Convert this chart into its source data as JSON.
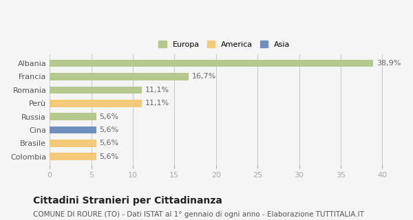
{
  "categories": [
    "Albania",
    "Francia",
    "Romania",
    "Perù",
    "Russia",
    "Cina",
    "Brasile",
    "Colombia"
  ],
  "values": [
    38.9,
    16.7,
    11.1,
    11.1,
    5.6,
    5.6,
    5.6,
    5.6
  ],
  "labels": [
    "38,9%",
    "16,7%",
    "11,1%",
    "11,1%",
    "5,6%",
    "5,6%",
    "5,6%",
    "5,6%"
  ],
  "colors": [
    "#b5c98e",
    "#b5c98e",
    "#b5c98e",
    "#f5c97a",
    "#b5c98e",
    "#6e8fbe",
    "#f5c97a",
    "#f5c97a"
  ],
  "legend": [
    {
      "label": "Europa",
      "color": "#b5c98e"
    },
    {
      "label": "America",
      "color": "#f5c97a"
    },
    {
      "label": "Asia",
      "color": "#6e8fbe"
    }
  ],
  "xlim": [
    0,
    42
  ],
  "xticks": [
    0,
    5,
    10,
    15,
    20,
    25,
    30,
    35,
    40
  ],
  "title": "Cittadini Stranieri per Cittadinanza",
  "subtitle": "COMUNE DI ROURE (TO) - Dati ISTAT al 1° gennaio di ogni anno - Elaborazione TUTTITALIA.IT",
  "background_color": "#f5f5f5",
  "grid_color": "#cccccc",
  "label_fontsize": 8,
  "tick_fontsize": 8,
  "title_fontsize": 10,
  "subtitle_fontsize": 7.5
}
